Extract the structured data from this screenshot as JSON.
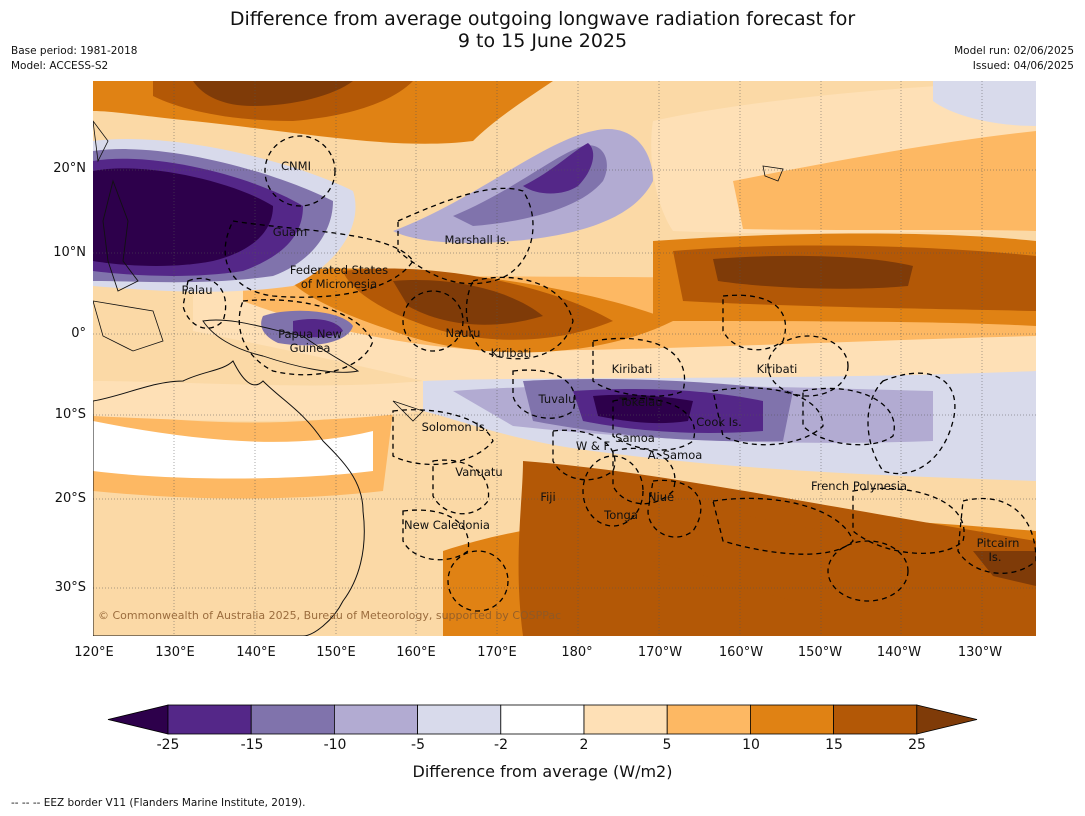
{
  "title_line1": "Difference from average outgoing longwave radiation forecast for",
  "title_line2": "9 to 15 June 2025",
  "meta_left": {
    "base_period": "Base period: 1981-2018",
    "model": "Model: ACCESS-S2"
  },
  "meta_right": {
    "model_run": "Model run: 02/06/2025",
    "issued": "Issued: 04/06/2025"
  },
  "lat_labels": [
    "20°N",
    "10°N",
    "0°",
    "10°S",
    "20°S",
    "30°S"
  ],
  "lon_labels": [
    "120°E",
    "130°E",
    "140°E",
    "150°E",
    "160°E",
    "170°E",
    "180°",
    "170°W",
    "160°W",
    "150°W",
    "140°W",
    "130°W"
  ],
  "places": [
    "CNMI",
    "Guam",
    "Marshall Is.",
    "Federated States",
    "of Micronesia",
    "Palau",
    "Papua New",
    "Guinea",
    "Nauru",
    "Kiribati",
    "Kiribati",
    "Kiribati",
    "Tuvalu",
    "Tokelau",
    "Cook Is.",
    "Solomon Is.",
    "W & F",
    "Samoa",
    "A. Samoa",
    "Vanuatu",
    "Fiji",
    "Niue",
    "Tonga",
    "French Polynesia",
    "New Caledonia",
    "Pitcairn",
    "Is."
  ],
  "copyright": "© Commonwealth of Australia 2025, Bureau of Meteorology, supported by COSPPac",
  "colorbar": {
    "title": "Difference from average (W/m2)",
    "ticks": [
      "-25",
      "-15",
      "-10",
      "-5",
      "-2",
      "2",
      "5",
      "10",
      "15",
      "25"
    ],
    "colors": [
      "#2d004b",
      "#542788",
      "#8073ac",
      "#b2abd2",
      "#d8daeb",
      "#ffffff",
      "#fee0b6",
      "#fdb863",
      "#e08214",
      "#b35806",
      "#7f3b08"
    ]
  },
  "footer": "-- -- -- EEZ border V11 (Flanders Marine Institute, 2019)."
}
